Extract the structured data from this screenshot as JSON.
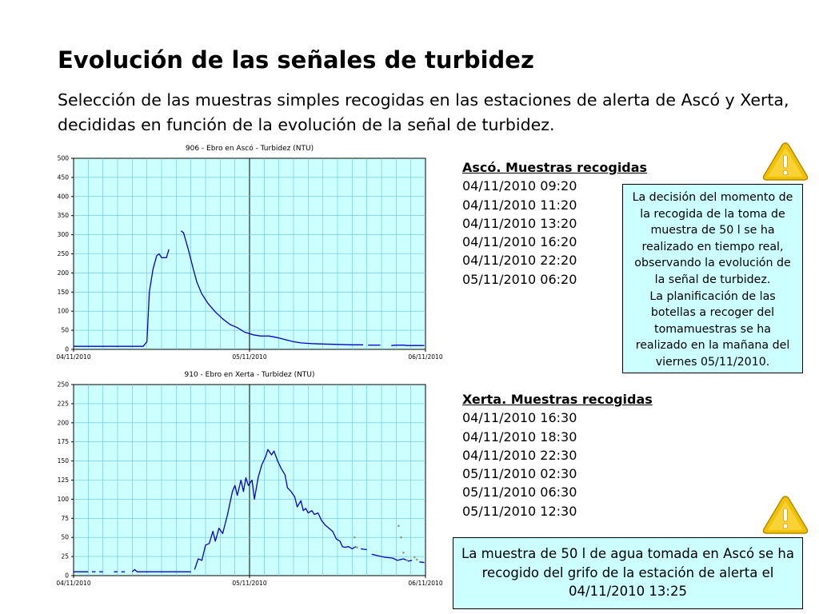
{
  "slide": {
    "title": "Evolución de las señales de turbidez",
    "subtitle": "Selección de las muestras simples recogidas en las estaciones de alerta de Ascó y Xerta, decididas en función de la evolución de la señal de turbidez."
  },
  "samples_asco": {
    "heading": "Ascó. Muestras recogidas",
    "items": [
      "04/11/2010 09:20",
      "04/11/2010 11:20",
      "04/11/2010 13:20",
      "04/11/2010 16:20",
      "04/11/2010 22:20",
      "05/11/2010 06:20"
    ]
  },
  "samples_xerta": {
    "heading": "Xerta. Muestras recogidas",
    "items": [
      "04/11/2010 16:30",
      "04/11/2010 18:30",
      "04/11/2010 22:30",
      "05/11/2010 02:30",
      "05/11/2010 06:30",
      "05/11/2010 12:30"
    ]
  },
  "notes": {
    "decision": "La decisión del momento de la recogida de la toma de muestra de 50 l se ha realizado en tiempo real, observando la evolución de la señal de turbidez.\nLa planificación de las botellas a recoger del tomamuestras se ha realizado en la mañana del viernes 05/11/2010.",
    "grifo": "La muestra de 50 l de agua tomada en Ascó se ha recogido del grifo de la estación de alerta el 04/11/2010 13:25"
  },
  "icons": {
    "warning": "warning-triangle-icon"
  },
  "colors": {
    "plot_bg": "#ccffff",
    "grid": "#66c2d6",
    "series": "#0000cc",
    "note_bg": "#ccffff",
    "warning": "#f2c200"
  },
  "chart_data": [
    {
      "type": "line",
      "title": "906 - Ebro en Ascó - Turbidez (NTU)",
      "xlabel": "",
      "ylabel": "",
      "x_range": [
        "04/11/2010 00:00",
        "06/11/2010 00:00"
      ],
      "x_tick_labels": [
        "04/11/2010",
        "05/11/2010",
        "06/11/2010"
      ],
      "y_ticks": [
        0,
        50,
        100,
        150,
        200,
        250,
        300,
        350,
        400,
        450,
        500
      ],
      "ylim": [
        0,
        500
      ],
      "grid": true,
      "series": [
        {
          "segments": [
            [
              [
                "04/11/2010 00:00",
                8
              ],
              [
                "04/11/2010 09:30",
                8
              ],
              [
                "04/11/2010 10:00",
                20
              ],
              [
                "04/11/2010 10:20",
                150
              ],
              [
                "04/11/2010 10:50",
                210
              ],
              [
                "04/11/2010 11:20",
                245
              ],
              [
                "04/11/2010 11:40",
                250
              ],
              [
                "04/11/2010 12:00",
                240
              ],
              [
                "04/11/2010 12:40",
                240
              ],
              [
                "04/11/2010 13:00",
                262
              ]
            ],
            [
              [
                "04/11/2010 14:40",
                310
              ],
              [
                "04/11/2010 15:00",
                305
              ],
              [
                "04/11/2010 15:40",
                260
              ],
              [
                "04/11/2010 16:20",
                210
              ],
              [
                "04/11/2010 16:50",
                175
              ],
              [
                "04/11/2010 17:30",
                145
              ],
              [
                "04/11/2010 18:20",
                120
              ],
              [
                "04/11/2010 19:20",
                98
              ],
              [
                "04/11/2010 20:20",
                80
              ],
              [
                "04/11/2010 21:20",
                65
              ],
              [
                "04/11/2010 22:20",
                57
              ],
              [
                "04/11/2010 23:20",
                45
              ],
              [
                "05/11/2010 00:30",
                38
              ],
              [
                "05/11/2010 01:30",
                35
              ],
              [
                "05/11/2010 02:40",
                35
              ],
              [
                "05/11/2010 04:00",
                30
              ],
              [
                "05/11/2010 05:00",
                25
              ],
              [
                "05/11/2010 06:00",
                20
              ],
              [
                "05/11/2010 07:00",
                17
              ],
              [
                "05/11/2010 08:30",
                15
              ],
              [
                "05/11/2010 10:00",
                14
              ],
              [
                "05/11/2010 12:00",
                13
              ],
              [
                "05/11/2010 14:00",
                12
              ],
              [
                "05/11/2010 15:30",
                12
              ]
            ],
            [
              [
                "05/11/2010 16:10",
                11
              ],
              [
                "05/11/2010 17:50",
                11
              ]
            ],
            [
              [
                "05/11/2010 19:20",
                10
              ],
              [
                "05/11/2010 20:00",
                11
              ],
              [
                "05/11/2010 21:00",
                11
              ],
              [
                "05/11/2010 21:30",
                10
              ],
              [
                "05/11/2010 23:50",
                10
              ]
            ]
          ]
        }
      ]
    },
    {
      "type": "line",
      "title": "910 - Ebro en Xerta - Turbidez (NTU)",
      "xlabel": "",
      "ylabel": "",
      "x_range": [
        "04/11/2010 00:00",
        "06/11/2010 00:00"
      ],
      "x_tick_labels": [
        "04/11/2010",
        "05/11/2010",
        "06/11/2010"
      ],
      "y_ticks": [
        0,
        25,
        50,
        75,
        100,
        125,
        150,
        175,
        200,
        225,
        250
      ],
      "ylim": [
        0,
        250
      ],
      "grid": true,
      "series": [
        {
          "segments": [
            [
              [
                "04/11/2010 00:00",
                5
              ],
              [
                "04/11/2010 02:00",
                5
              ]
            ],
            [
              [
                "04/11/2010 02:30",
                5
              ],
              [
                "04/11/2010 03:00",
                5
              ]
            ],
            [
              [
                "04/11/2010 03:30",
                5
              ],
              [
                "04/11/2010 04:00",
                5
              ]
            ],
            [
              [
                "04/11/2010 05:30",
                5
              ],
              [
                "04/11/2010 06:00",
                5
              ]
            ],
            [
              [
                "04/11/2010 06:30",
                5
              ],
              [
                "04/11/2010 07:00",
                5
              ]
            ],
            [
              [
                "04/11/2010 08:00",
                5
              ],
              [
                "04/11/2010 08:20",
                8
              ],
              [
                "04/11/2010 08:40",
                5
              ],
              [
                "04/11/2010 16:00",
                5
              ]
            ],
            [
              [
                "04/11/2010 16:30",
                8
              ],
              [
                "04/11/2010 17:00",
                22
              ],
              [
                "04/11/2010 17:30",
                20
              ],
              [
                "04/11/2010 18:00",
                40
              ],
              [
                "04/11/2010 18:30",
                42
              ],
              [
                "04/11/2010 19:00",
                58
              ],
              [
                "04/11/2010 19:20",
                45
              ],
              [
                "04/11/2010 19:50",
                62
              ],
              [
                "04/11/2010 20:20",
                55
              ],
              [
                "04/11/2010 21:00",
                80
              ],
              [
                "04/11/2010 21:40",
                110
              ],
              [
                "04/11/2010 22:00",
                118
              ],
              [
                "04/11/2010 22:20",
                105
              ],
              [
                "04/11/2010 22:50",
                125
              ],
              [
                "04/11/2010 23:10",
                110
              ],
              [
                "04/11/2010 23:30",
                128
              ],
              [
                "04/11/2010 23:50",
                118
              ],
              [
                "05/11/2010 00:20",
                125
              ],
              [
                "05/11/2010 00:40",
                100
              ],
              [
                "05/11/2010 01:10",
                128
              ],
              [
                "05/11/2010 01:40",
                145
              ],
              [
                "05/11/2010 02:10",
                155
              ],
              [
                "05/11/2010 02:30",
                165
              ],
              [
                "05/11/2010 03:00",
                158
              ],
              [
                "05/11/2010 03:20",
                163
              ],
              [
                "05/11/2010 03:50",
                150
              ],
              [
                "05/11/2010 04:20",
                140
              ],
              [
                "05/11/2010 04:50",
                132
              ],
              [
                "05/11/2010 05:10",
                115
              ],
              [
                "05/11/2010 05:40",
                110
              ],
              [
                "05/11/2010 06:10",
                103
              ],
              [
                "05/11/2010 06:30",
                90
              ],
              [
                "05/11/2010 07:00",
                98
              ],
              [
                "05/11/2010 07:20",
                85
              ],
              [
                "05/11/2010 07:40",
                88
              ],
              [
                "05/11/2010 08:00",
                82
              ],
              [
                "05/11/2010 08:30",
                85
              ],
              [
                "05/11/2010 08:50",
                80
              ],
              [
                "05/11/2010 09:20",
                82
              ],
              [
                "05/11/2010 09:50",
                72
              ],
              [
                "05/11/2010 10:20",
                66
              ],
              [
                "05/11/2010 10:50",
                62
              ],
              [
                "05/11/2010 11:20",
                58
              ],
              [
                "05/11/2010 11:50",
                48
              ],
              [
                "05/11/2010 12:20",
                45
              ],
              [
                "05/11/2010 12:40",
                38
              ],
              [
                "05/11/2010 13:00",
                37
              ],
              [
                "05/11/2010 13:30",
                38
              ],
              [
                "05/11/2010 14:00",
                35
              ],
              [
                "05/11/2010 14:30",
                38
              ]
            ],
            [
              [
                "05/11/2010 15:10",
                35
              ],
              [
                "05/11/2010 16:00",
                34
              ]
            ],
            [
              [
                "05/11/2010 16:40",
                28
              ],
              [
                "05/11/2010 17:30",
                26
              ],
              [
                "05/11/2010 18:30",
                24
              ],
              [
                "05/11/2010 19:30",
                23
              ],
              [
                "05/11/2010 20:10",
                20
              ],
              [
                "05/11/2010 21:00",
                22
              ],
              [
                "05/11/2010 21:40",
                19
              ],
              [
                "05/11/2010 22:10",
                20
              ]
            ],
            [
              [
                "05/11/2010 23:10",
                18
              ],
              [
                "05/11/2010 23:50",
                17
              ]
            ]
          ],
          "markers": [
            [
              "05/11/2010 14:20",
              50
            ],
            [
              "05/11/2010 14:40",
              37
            ],
            [
              "05/11/2010 20:20",
              65
            ],
            [
              "05/11/2010 20:40",
              50
            ],
            [
              "05/11/2010 21:00",
              30
            ],
            [
              "05/11/2010 21:30",
              20
            ],
            [
              "05/11/2010 22:30",
              24
            ],
            [
              "05/11/2010 22:50",
              21
            ]
          ]
        }
      ]
    }
  ]
}
